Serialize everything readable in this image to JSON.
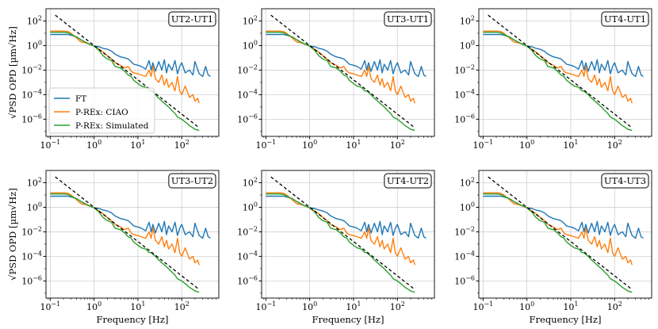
{
  "chart_data": {
    "type": "line",
    "xscale": "log",
    "yscale": "log",
    "xlim": [
      0.08,
      700
    ],
    "ylim": [
      4e-08,
      1000
    ],
    "xlabel": "Frequency [Hz]",
    "ylabel": "√PSD OPD  [µm√Hz]",
    "x_ticks": [
      {
        "v": 0.1,
        "exp": "−1"
      },
      {
        "v": 1,
        "exp": "0"
      },
      {
        "v": 10,
        "exp": "1"
      },
      {
        "v": 100,
        "exp": "2"
      }
    ],
    "y_ticks": [
      {
        "v": 100,
        "exp": "2"
      },
      {
        "v": 1,
        "exp": "0"
      },
      {
        "v": 0.01,
        "exp": "−2"
      },
      {
        "v": 0.0001,
        "exp": "−4"
      },
      {
        "v": 1e-06,
        "exp": "−6"
      }
    ],
    "grid": true,
    "legend_position": "lower-left (first panel only)",
    "panels": [
      "UT2-UT1",
      "UT3-UT1",
      "UT4-UT1",
      "UT3-UT2",
      "UT4-UT2",
      "UT4-UT3"
    ],
    "series": [
      {
        "name": "FT",
        "color": "#1f77b4",
        "x": [
          0.1,
          0.15,
          0.2,
          0.25,
          0.3,
          0.4,
          0.5,
          0.7,
          1,
          1.3,
          1.6,
          2,
          2.5,
          3,
          4,
          5,
          6,
          7,
          8,
          10,
          12,
          15,
          18,
          20,
          22,
          25,
          30,
          35,
          40,
          45,
          50,
          60,
          70,
          80,
          90,
          100,
          120,
          150,
          180,
          200,
          250,
          300,
          350,
          400,
          450
        ],
        "y": [
          8,
          8,
          8,
          8,
          7,
          5,
          3,
          1.5,
          0.9,
          0.8,
          0.6,
          0.5,
          0.35,
          0.2,
          0.12,
          0.1,
          0.08,
          0.05,
          0.03,
          0.025,
          0.02,
          0.012,
          0.06,
          0.01,
          0.04,
          0.008,
          0.05,
          0.01,
          0.07,
          0.006,
          0.03,
          0.01,
          0.06,
          0.005,
          0.02,
          0.04,
          0.006,
          0.01,
          0.004,
          0.05,
          0.005,
          0.003,
          0.02,
          0.004,
          0.003
        ]
      },
      {
        "name": "P-REx: CIAO",
        "color": "#ff7f0e",
        "x": [
          0.1,
          0.15,
          0.2,
          0.25,
          0.3,
          0.4,
          0.5,
          0.7,
          1,
          1.3,
          1.6,
          2,
          2.5,
          3,
          4,
          5,
          6,
          7,
          8,
          10,
          12,
          15,
          18,
          20,
          22,
          25,
          30,
          35,
          40,
          45,
          50,
          60,
          70,
          80,
          90,
          100,
          120,
          150,
          180,
          200,
          230,
          250
        ],
        "y": [
          15,
          15,
          15,
          14,
          10,
          4,
          2,
          1.5,
          0.9,
          0.5,
          0.3,
          0.15,
          0.08,
          0.04,
          0.025,
          0.015,
          0.02,
          0.008,
          0.006,
          0.005,
          0.004,
          0.003,
          0.01,
          0.003,
          0.02,
          0.002,
          0.001,
          0.004,
          0.0006,
          0.002,
          0.0004,
          0.001,
          0.0002,
          0.003,
          0.0002,
          0.0001,
          0.0005,
          6e-05,
          0.0001,
          3e-05,
          5e-05,
          2e-05
        ]
      },
      {
        "name": "P-REx: Simulated",
        "color": "#2ca02c",
        "x": [
          0.1,
          0.15,
          0.2,
          0.25,
          0.3,
          0.4,
          0.5,
          0.7,
          1,
          1.3,
          1.6,
          2,
          2.5,
          3,
          4,
          5,
          6,
          7,
          8,
          10,
          12,
          15,
          18,
          20,
          25,
          30,
          40,
          50,
          60,
          70,
          80,
          100,
          120,
          150,
          180,
          200,
          250
        ],
        "y": [
          12,
          12,
          12,
          11,
          8,
          5,
          3,
          1.6,
          0.9,
          0.4,
          0.15,
          0.08,
          0.06,
          0.02,
          0.015,
          0.008,
          0.004,
          0.003,
          0.0015,
          0.0008,
          0.0005,
          0.0004,
          0.0002,
          0.0002,
          0.0001,
          5e-05,
          2e-05,
          1e-05,
          5e-06,
          3e-06,
          1.5e-06,
          1e-06,
          6e-07,
          3e-07,
          2e-07,
          1.5e-07,
          1.2e-07
        ]
      },
      {
        "name": "fit",
        "color": "#000000",
        "dashed": true,
        "x": [
          0.13,
          250
        ],
        "y": [
          300,
          2e-07
        ]
      }
    ]
  }
}
